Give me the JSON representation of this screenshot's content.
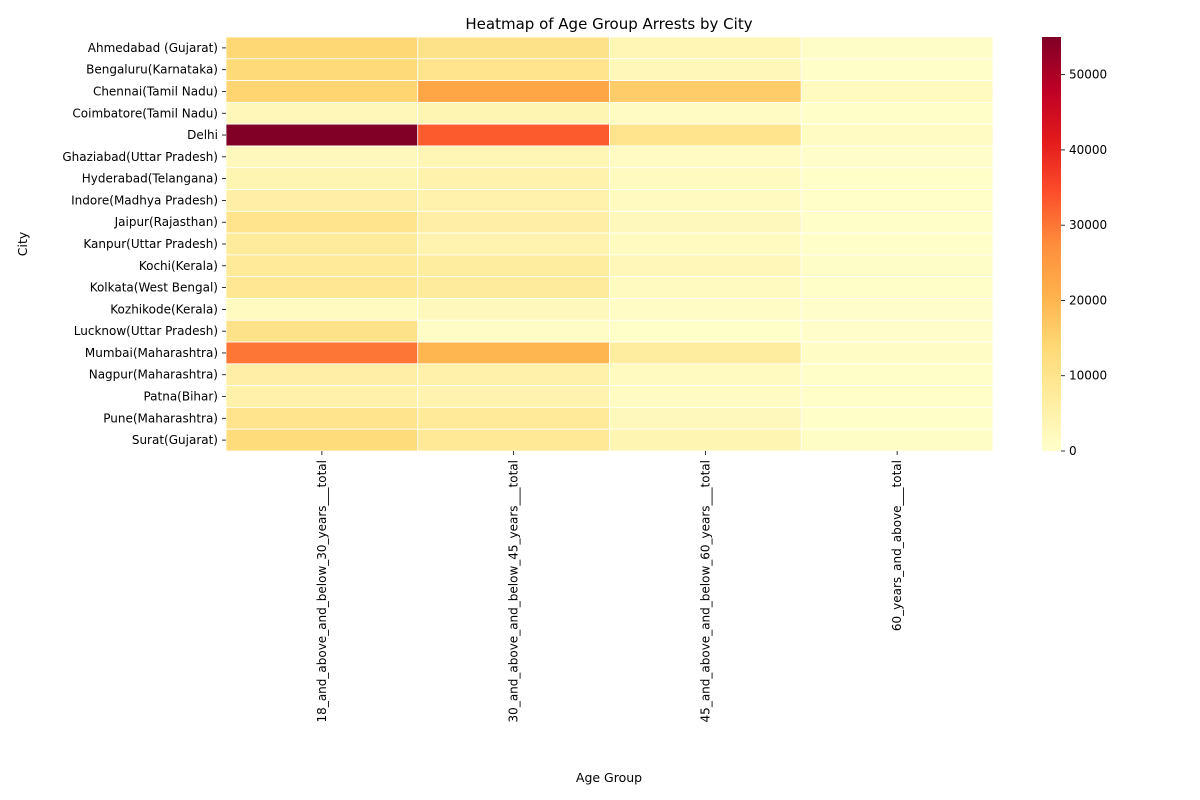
{
  "chart_data": {
    "type": "heatmap",
    "title": "Heatmap of Age Group Arrests by City",
    "xlabel": "Age Group",
    "ylabel": "City",
    "x_categories": [
      "18_and_above_and_below_30_years___total",
      "30_and_above_and_below_45_years___total",
      "45_and_above_and_below_60_years___total",
      "60_years_and_above___total"
    ],
    "y_categories": [
      "Ahmedabad (Gujarat)",
      "Bengaluru(Karnataka)",
      "Chennai(Tamil Nadu)",
      "Coimbatore(Tamil Nadu)",
      "Delhi ",
      "Ghaziabad(Uttar Pradesh)",
      "Hyderabad(Telangana)",
      "Indore(Madhya Pradesh)",
      "Jaipur(Rajasthan)",
      "Kanpur(Uttar Pradesh)",
      "Kochi(Kerala)",
      "Kolkata(West Bengal)",
      "Kozhikode(Kerala)",
      "Lucknow(Uttar Pradesh)",
      "Mumbai(Maharashtra)",
      "Nagpur(Maharashtra)",
      "Patna(Bihar)",
      "Pune(Maharashtra)",
      "Surat(Gujarat)"
    ],
    "values": [
      [
        14000,
        10500,
        3500,
        800
      ],
      [
        13500,
        10000,
        3000,
        600
      ],
      [
        14500,
        23000,
        16000,
        2000
      ],
      [
        3000,
        4000,
        1500,
        400
      ],
      [
        55000,
        33000,
        10000,
        1500
      ],
      [
        2500,
        3500,
        1500,
        300
      ],
      [
        4000,
        5000,
        2000,
        500
      ],
      [
        6000,
        5000,
        2000,
        500
      ],
      [
        10000,
        6000,
        2500,
        500
      ],
      [
        7500,
        4500,
        2000,
        400
      ],
      [
        8000,
        7000,
        3000,
        800
      ],
      [
        9000,
        7500,
        2000,
        500
      ],
      [
        2000,
        2500,
        1000,
        300
      ],
      [
        10500,
        1000,
        500,
        200
      ],
      [
        30000,
        20000,
        7000,
        1000
      ],
      [
        6000,
        5500,
        2000,
        500
      ],
      [
        5500,
        4500,
        1500,
        400
      ],
      [
        10000,
        8000,
        2500,
        500
      ],
      [
        13000,
        8500,
        4000,
        900
      ]
    ],
    "colormap": "YlOrRd",
    "color_range": [
      0,
      55000
    ],
    "colorbar_ticks": [
      0,
      10000,
      20000,
      30000,
      40000,
      50000
    ],
    "colors": {
      "ramp": [
        "#ffffcc",
        "#ffeda0",
        "#fed976",
        "#feb24c",
        "#fd8d3c",
        "#fc4e2a",
        "#e31a1c",
        "#bd0026",
        "#800026"
      ],
      "gridline": "#ffffff",
      "text": "#000000"
    }
  }
}
